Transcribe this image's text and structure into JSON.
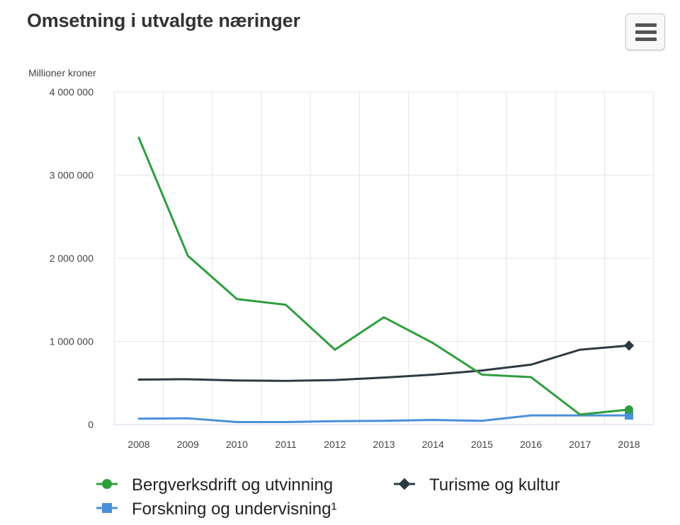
{
  "header": {
    "title": "Omsetning i utvalgte næringer",
    "menu_icon": "hamburger-menu-icon"
  },
  "chart_data": {
    "type": "line",
    "title": "Omsetning i utvalgte næringer",
    "ylabel": "Millioner kroner",
    "xlabel": "",
    "categories": [
      "2008",
      "2009",
      "2010",
      "2011",
      "2012",
      "2013",
      "2014",
      "2015",
      "2016",
      "2017",
      "2018"
    ],
    "y_ticks": [
      0,
      1000000,
      2000000,
      3000000,
      4000000
    ],
    "y_tick_labels": [
      "0",
      "1 000 000",
      "2 000 000",
      "3 000 000",
      "4 000 000"
    ],
    "ylim": [
      0,
      4000000
    ],
    "grid": true,
    "legend_position": "bottom",
    "series": [
      {
        "name": "Bergverksdrift og utvinning",
        "color": "#2e9e3e",
        "marker": "circle",
        "values": [
          3450000,
          2030000,
          1510000,
          1440000,
          900000,
          1290000,
          980000,
          600000,
          570000,
          120000,
          180000
        ]
      },
      {
        "name": "Turisme og kultur",
        "color": "#2b3a42",
        "marker": "diamond",
        "values": [
          540000,
          545000,
          530000,
          525000,
          535000,
          565000,
          600000,
          650000,
          720000,
          900000,
          950000
        ]
      },
      {
        "name": "Forskning og undervisning¹",
        "color": "#4a90d9",
        "marker": "square",
        "values": [
          70000,
          75000,
          30000,
          30000,
          40000,
          45000,
          55000,
          45000,
          110000,
          110000,
          110000
        ]
      }
    ]
  }
}
